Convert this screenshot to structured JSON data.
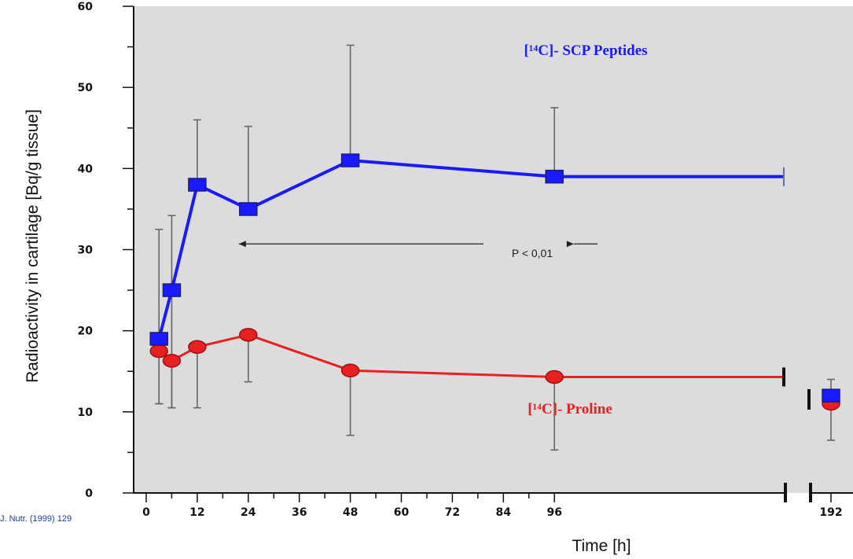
{
  "chart_data": {
    "type": "line",
    "xlabel": "Time [h]",
    "ylabel": "Radioactivity in cartilage [Bq/g  tissue]",
    "ylim": [
      0,
      60
    ],
    "yticks": [
      "0",
      "10",
      "20",
      "30",
      "40",
      "50",
      "60"
    ],
    "xticks": [
      "0",
      "12",
      "24",
      "36",
      "48",
      "60",
      "72",
      "84",
      "96",
      "192"
    ],
    "x_axis_break": "between 96 and 192",
    "grid": false,
    "series": [
      {
        "name": "[¹⁴C]- SCP Peptides",
        "color": "#1a1aff",
        "marker": "square",
        "points": [
          {
            "x": 3,
            "y": 19,
            "err_low": 8,
            "err_high": 13.5
          },
          {
            "x": 6,
            "y": 25,
            "err_low": 14.5,
            "err_high": 9.2
          },
          {
            "x": 12,
            "y": 38,
            "err_low": 0,
            "err_high": 8
          },
          {
            "x": 24,
            "y": 35,
            "err_low": 0,
            "err_high": 10.2
          },
          {
            "x": 48,
            "y": 41,
            "err_low": 0,
            "err_high": 14.2
          },
          {
            "x": 96,
            "y": 39,
            "err_low": 0,
            "err_high": 8.5
          },
          {
            "x": 192,
            "y": 12,
            "err_low": 0,
            "err_high": 2
          }
        ]
      },
      {
        "name": "[¹⁴C]- Proline",
        "color": "#e82020",
        "marker": "circle",
        "points": [
          {
            "x": 3,
            "y": 17.5,
            "err_low": 6.5,
            "err_high": 0
          },
          {
            "x": 6,
            "y": 16.3,
            "err_low": 5.8,
            "err_high": 0
          },
          {
            "x": 12,
            "y": 18,
            "err_low": 7.5,
            "err_high": 0
          },
          {
            "x": 24,
            "y": 19.5,
            "err_low": 5.8,
            "err_high": 0
          },
          {
            "x": 48,
            "y": 15.1,
            "err_low": 8,
            "err_high": 0.7
          },
          {
            "x": 96,
            "y": 14.3,
            "err_low": 9,
            "err_high": 0
          },
          {
            "x": 192,
            "y": 11,
            "err_low": 4.5,
            "err_high": 0
          }
        ]
      }
    ],
    "annotation": "P < 0,01",
    "annotation_range": [
      24,
      100
    ],
    "source": "J. Nutr. (1999) 129"
  },
  "colors": {
    "plot_background": "#dcdcdc",
    "axis": "#111111",
    "errorbar": "#666666"
  }
}
